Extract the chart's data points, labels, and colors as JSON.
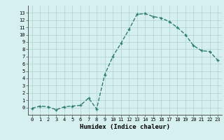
{
  "x": [
    0,
    1,
    2,
    3,
    4,
    5,
    6,
    7,
    8,
    9,
    10,
    11,
    12,
    13,
    14,
    15,
    16,
    17,
    18,
    19,
    20,
    21,
    22,
    23
  ],
  "y": [
    -0.1,
    0.2,
    0.1,
    -0.3,
    0.1,
    0.2,
    0.3,
    1.3,
    -0.2,
    4.5,
    7.0,
    8.8,
    10.7,
    12.8,
    12.9,
    12.5,
    12.3,
    11.8,
    11.0,
    10.0,
    8.5,
    7.8,
    7.7,
    6.5
  ],
  "xlabel": "Humidex (Indice chaleur)",
  "xlim": [
    -0.5,
    23.5
  ],
  "ylim": [
    -1.0,
    14.0
  ],
  "yticks": [
    0,
    1,
    2,
    3,
    4,
    5,
    6,
    7,
    8,
    9,
    10,
    11,
    12,
    13
  ],
  "xticks": [
    0,
    1,
    2,
    3,
    4,
    5,
    6,
    7,
    8,
    9,
    10,
    11,
    12,
    13,
    14,
    15,
    16,
    17,
    18,
    19,
    20,
    21,
    22,
    23
  ],
  "line_color": "#2e7d6e",
  "bg_color": "#d6f0f0",
  "grid_color": "#b5d5d5",
  "marker_size": 2.5,
  "line_width": 1.0
}
